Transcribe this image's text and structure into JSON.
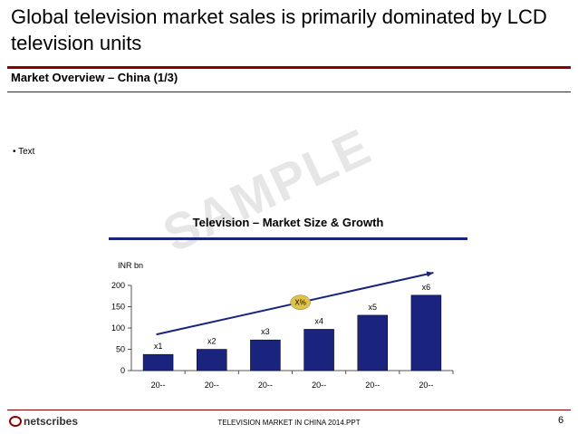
{
  "header": {
    "title": "Global television market sales is primarily dominated by LCD television units",
    "subtitle": "Market Overview – China (1/3)"
  },
  "content": {
    "bullet": "• Text",
    "watermark": "SAMPLE"
  },
  "chart_data": {
    "type": "bar",
    "title": "Television – Market Size & Growth",
    "ylabel": "INR bn",
    "categories": [
      "20--",
      "20--",
      "20--",
      "20--",
      "20--",
      "20--"
    ],
    "values": [
      38,
      50,
      72,
      97,
      130,
      177
    ],
    "data_labels": [
      "x1",
      "x2",
      "x3",
      "x4",
      "x5",
      "x6"
    ],
    "yticks": [
      0,
      50,
      100,
      150,
      200
    ],
    "ylim": [
      0,
      200
    ],
    "growth_label": "X%",
    "colors": {
      "bar": "#1a237e",
      "badge": "#e0c24a",
      "arrow": "#1a237e"
    }
  },
  "footer": {
    "center_text": "TELEVISION MARKET IN CHINA 2014.PPT",
    "page_number": "6",
    "logo": "netscribes"
  }
}
